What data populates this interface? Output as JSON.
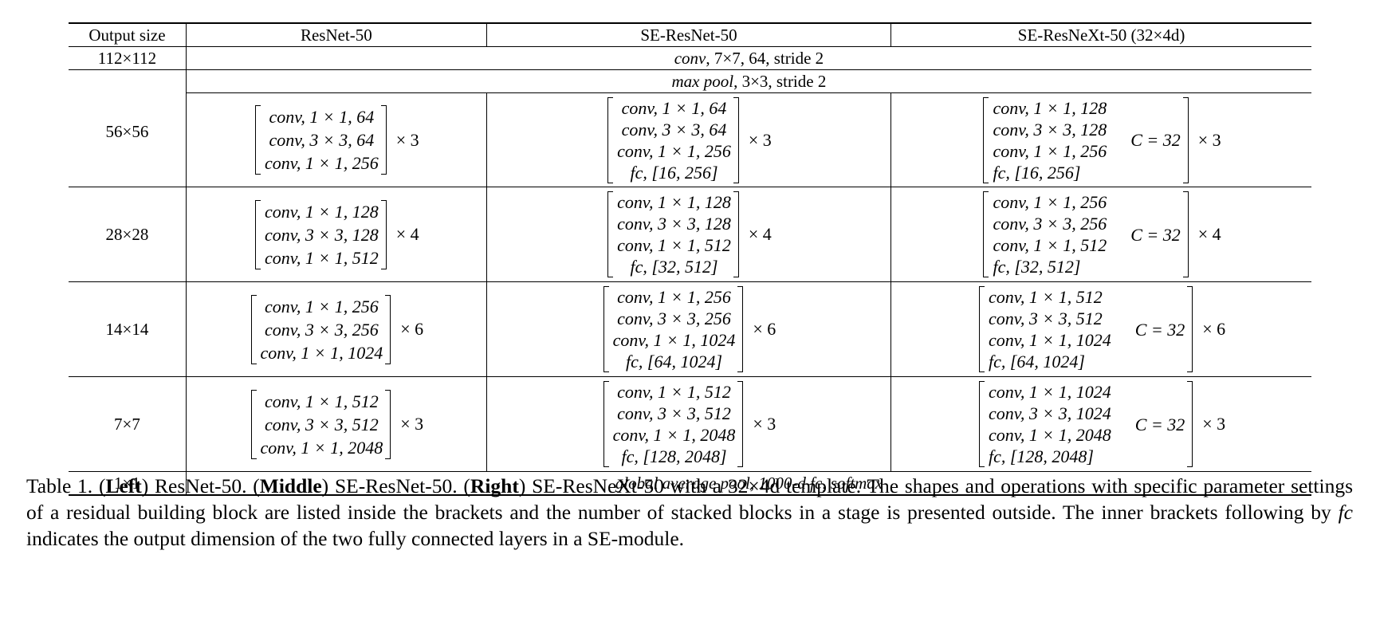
{
  "table": {
    "headers": [
      "Output size",
      "ResNet-50",
      "SE-ResNet-50",
      "SE-ResNeXt-50 (32×4d)"
    ],
    "conv1": {
      "output": "112×112",
      "op": "conv",
      "text": ", 7×7, 64, stride 2"
    },
    "pool": {
      "output": "56×56",
      "op": "max pool",
      "text": ", 3×3, stride 2"
    },
    "stages": [
      {
        "output": "",
        "resnet": {
          "lines": [
            "conv, 1 × 1, 64",
            "conv, 3 × 3, 64",
            "conv, 1 × 1, 256"
          ],
          "times": "× 3"
        },
        "se_resnet": {
          "lines": [
            "conv, 1 × 1, 64",
            "conv, 3 × 3, 64",
            "conv, 1 × 1, 256",
            "fc, [16, 256]"
          ],
          "times": "× 3"
        },
        "se_resnext": {
          "lines": [
            "conv, 1 × 1, 128",
            "conv, 3 × 3, 128",
            "conv, 1 × 1, 256",
            "fc, [16, 256]"
          ],
          "cardinality": "C = 32",
          "times": "× 3"
        }
      },
      {
        "output": "28×28",
        "resnet": {
          "lines": [
            "conv, 1 × 1, 128",
            "conv, 3 × 3, 128",
            "conv, 1 × 1, 512"
          ],
          "times": "× 4"
        },
        "se_resnet": {
          "lines": [
            "conv, 1 × 1, 128",
            "conv, 3 × 3, 128",
            "conv, 1 × 1, 512",
            "fc, [32, 512]"
          ],
          "times": "× 4"
        },
        "se_resnext": {
          "lines": [
            "conv, 1 × 1, 256",
            "conv, 3 × 3, 256",
            "conv, 1 × 1, 512",
            "fc, [32, 512]"
          ],
          "cardinality": "C = 32",
          "times": "× 4"
        }
      },
      {
        "output": "14×14",
        "resnet": {
          "lines": [
            "conv, 1 × 1, 256",
            "conv, 3 × 3, 256",
            "conv, 1 × 1, 1024"
          ],
          "times": "× 6"
        },
        "se_resnet": {
          "lines": [
            "conv, 1 × 1, 256",
            "conv, 3 × 3, 256",
            "conv, 1 × 1, 1024",
            "fc, [64, 1024]"
          ],
          "times": "× 6"
        },
        "se_resnext": {
          "lines": [
            "conv, 1 × 1, 512",
            "conv, 3 × 3, 512",
            "conv, 1 × 1, 1024",
            "fc, [64, 1024]"
          ],
          "cardinality": "C = 32",
          "times": "× 6"
        }
      },
      {
        "output": "7×7",
        "resnet": {
          "lines": [
            "conv, 1 × 1, 512",
            "conv, 3 × 3, 512",
            "conv, 1 × 1, 2048"
          ],
          "times": "× 3"
        },
        "se_resnet": {
          "lines": [
            "conv, 1 × 1, 512",
            "conv, 3 × 3, 512",
            "conv, 1 × 1, 2048",
            "fc, [128, 2048]"
          ],
          "times": "× 3"
        },
        "se_resnext": {
          "lines": [
            "conv, 1 × 1, 1024",
            "conv, 3 × 3, 1024",
            "conv, 1 × 1, 2048",
            "fc, [128, 2048]"
          ],
          "cardinality": "C = 32",
          "times": "× 3"
        }
      }
    ],
    "final": {
      "output": "1×1",
      "text": "global average pool, 1000-d fc, softmax"
    }
  },
  "caption": {
    "label": "Table 1. ",
    "left_bold": "Left",
    "left_text": " ResNet-50. ",
    "middle_bold": "Middle",
    "middle_text": " SE-ResNet-50. ",
    "right_bold": "Right",
    "right_text": " SE-ResNeXt-50 with a 32×4d template. The shapes and operations with specific parameter settings of a residual building block are listed inside the brackets and the number of stacked blocks in a stage is presented outside. The inner brackets following by ",
    "fc_italic": "fc",
    "tail_text": " indicates the output dimension of the two fully connected layers in a SE-module."
  }
}
